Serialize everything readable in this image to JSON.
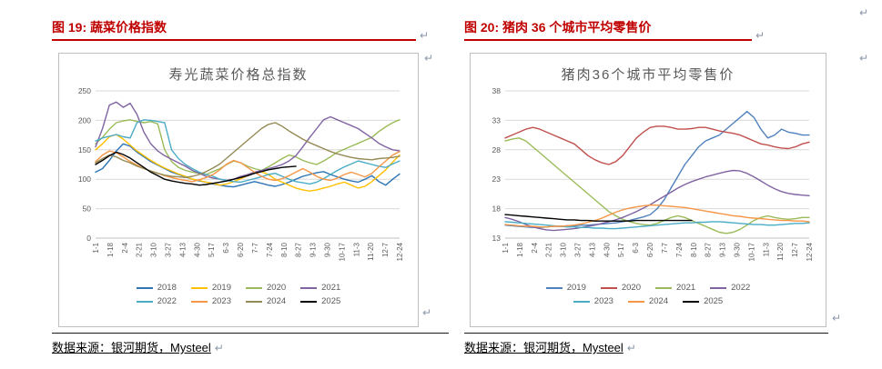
{
  "page": {
    "formatting_mark": "↵"
  },
  "figures": {
    "left": {
      "heading": "图 19: 蔬菜价格指数",
      "source": "数据来源：银河期货，Mysteel"
    },
    "right": {
      "heading": "图 20: 猪肉 36 个城市平均零售价",
      "source": "数据来源：银河期货，Mysteel"
    }
  },
  "colors": {
    "heading_red": "#C00000",
    "axis_text": "#595959",
    "gridline": "#D9D9D9",
    "axis_line": "#BFBFBF",
    "chart_border": "#BFBFBF"
  },
  "chart_data": [
    {
      "type": "line",
      "title": "寿光蔬菜价格总指数",
      "xlabel": "",
      "ylabel": "",
      "ylim": [
        0,
        250
      ],
      "yticks": [
        0,
        50,
        100,
        150,
        200,
        250
      ],
      "grid": true,
      "legend_position": "bottom",
      "categories": [
        "1-1",
        "1-18",
        "2-4",
        "2-21",
        "3-10",
        "3-27",
        "4-13",
        "4-30",
        "5-17",
        "6-3",
        "6-20",
        "7-7",
        "7-24",
        "8-10",
        "8-27",
        "9-13",
        "9-30",
        "10-17",
        "11-3",
        "11-20",
        "12-7",
        "12-24"
      ],
      "legend_rows": [
        [
          "2018",
          "2019",
          "2020",
          "2021"
        ],
        [
          "2022",
          "2023",
          "2024",
          "2025"
        ]
      ],
      "series": [
        {
          "name": "2018",
          "color": "#2E75B6",
          "values": [
            112,
            118,
            132,
            148,
            160,
            156,
            146,
            138,
            130,
            124,
            118,
            112,
            108,
            104,
            100,
            97,
            95,
            92,
            90,
            88,
            87,
            90,
            93,
            96,
            93,
            90,
            88,
            91,
            95,
            100,
            105,
            108,
            111,
            113,
            108,
            104,
            100,
            97,
            95,
            100,
            106,
            96,
            90,
            100,
            109
          ]
        },
        {
          "name": "2019",
          "color": "#FFC000",
          "values": [
            150,
            160,
            172,
            176,
            168,
            158,
            148,
            140,
            132,
            125,
            119,
            114,
            109,
            105,
            100,
            98,
            95,
            93,
            90,
            92,
            96,
            101,
            106,
            111,
            113,
            108,
            100,
            95,
            90,
            85,
            82,
            80,
            82,
            85,
            88,
            92,
            95,
            90,
            85,
            88,
            96,
            106,
            116,
            129,
            141
          ]
        },
        {
          "name": "2020",
          "color": "#9BBB59",
          "values": [
            160,
            171,
            185,
            196,
            199,
            201,
            198,
            196,
            198,
            194,
            150,
            130,
            120,
            115,
            112,
            110,
            108,
            113,
            118,
            125,
            131,
            128,
            122,
            118,
            115,
            121,
            128,
            135,
            141,
            138,
            132,
            128,
            125,
            131,
            138,
            146,
            151,
            156,
            161,
            166,
            171,
            181,
            189,
            196,
            201
          ]
        },
        {
          "name": "2021",
          "color": "#8064A2",
          "values": [
            155,
            186,
            226,
            231,
            222,
            229,
            210,
            180,
            160,
            148,
            140,
            134,
            128,
            122,
            115,
            110,
            105,
            102,
            100,
            98,
            100,
            105,
            108,
            112,
            115,
            118,
            121,
            125,
            131,
            140,
            155,
            171,
            186,
            201,
            206,
            201,
            196,
            191,
            186,
            178,
            170,
            161,
            155,
            150,
            148
          ]
        },
        {
          "name": "2022",
          "color": "#4BACC6",
          "values": [
            165,
            170,
            173,
            176,
            172,
            170,
            196,
            201,
            200,
            198,
            196,
            150,
            135,
            125,
            118,
            112,
            108,
            105,
            100,
            98,
            96,
            95,
            98,
            101,
            104,
            108,
            110,
            105,
            100,
            96,
            94,
            92,
            95,
            101,
            108,
            115,
            121,
            126,
            131,
            128,
            125,
            122,
            120,
            126,
            131
          ]
        },
        {
          "name": "2023",
          "color": "#F79646",
          "values": [
            130,
            141,
            148,
            145,
            138,
            130,
            124,
            118,
            114,
            110,
            106,
            103,
            100,
            98,
            96,
            99,
            103,
            108,
            116,
            126,
            132,
            128,
            120,
            112,
            105,
            100,
            98,
            101,
            106,
            112,
            118,
            112,
            105,
            100,
            98,
            102,
            108,
            112,
            108,
            104,
            110,
            121,
            131,
            141,
            147
          ]
        },
        {
          "name": "2024",
          "color": "#948A54",
          "values": [
            128,
            135,
            141,
            138,
            132,
            128,
            122,
            118,
            114,
            110,
            107,
            105,
            104,
            103,
            105,
            108,
            113,
            119,
            126,
            136,
            146,
            156,
            166,
            176,
            186,
            193,
            196,
            190,
            182,
            175,
            168,
            162,
            157,
            152,
            147,
            143,
            140,
            137,
            135,
            134,
            133,
            135,
            136,
            137,
            139
          ]
        },
        {
          "name": "2025",
          "color": "#000000",
          "values": [
            125,
            132,
            140,
            146,
            142,
            136,
            128,
            120,
            112,
            106,
            100,
            97,
            95,
            93,
            92,
            90,
            91,
            93,
            95,
            97,
            100,
            103,
            106,
            110,
            113,
            116,
            118,
            120,
            121,
            122
          ]
        }
      ]
    },
    {
      "type": "line",
      "title": "猪肉36个城市平均零售价",
      "xlabel": "",
      "ylabel": "",
      "ylim": [
        13,
        38
      ],
      "yticks": [
        13,
        18,
        23,
        28,
        33,
        38
      ],
      "grid": true,
      "legend_position": "bottom",
      "categories": [
        "1-1",
        "1-18",
        "2-4",
        "2-21",
        "3-10",
        "3-27",
        "4-13",
        "4-30",
        "5-17",
        "6-3",
        "6-20",
        "7-7",
        "7-24",
        "8-10",
        "8-27",
        "9-13",
        "9-30",
        "10-17",
        "11-3",
        "11-20",
        "12-7",
        "12-24"
      ],
      "legend_rows": [
        [
          "2019",
          "2020",
          "2021",
          "2022"
        ],
        [
          "2023",
          "2024",
          "2025"
        ]
      ],
      "series": [
        {
          "name": "2019",
          "color": "#4F81BD",
          "values": [
            15.2,
            15.1,
            15.0,
            14.9,
            14.8,
            14.8,
            14.9,
            15.0,
            15.0,
            15.1,
            15.1,
            15.2,
            15.2,
            15.3,
            15.4,
            15.5,
            15.6,
            15.8,
            16.0,
            16.3,
            16.6,
            17.0,
            18.0,
            19.5,
            21.5,
            23.5,
            25.5,
            27.0,
            28.5,
            29.5,
            30.0,
            30.5,
            31.5,
            32.5,
            33.5,
            34.5,
            33.5,
            31.5,
            30.0,
            30.5,
            31.5,
            31.0,
            30.8,
            30.5,
            30.5
          ]
        },
        {
          "name": "2020",
          "color": "#C0504D",
          "values": [
            30.0,
            30.5,
            31.0,
            31.5,
            31.8,
            31.5,
            31.0,
            30.5,
            30.0,
            29.5,
            29.0,
            28.0,
            27.0,
            26.3,
            25.8,
            25.5,
            26.0,
            27.0,
            28.5,
            30.0,
            31.0,
            31.8,
            32.0,
            32.0,
            31.8,
            31.5,
            31.5,
            31.6,
            31.8,
            31.8,
            31.5,
            31.2,
            31.0,
            30.8,
            30.5,
            30.0,
            29.5,
            29.0,
            28.8,
            28.5,
            28.3,
            28.2,
            28.5,
            29.0,
            29.3
          ]
        },
        {
          "name": "2021",
          "color": "#9BBB59",
          "values": [
            29.5,
            29.8,
            30.0,
            29.5,
            28.5,
            27.5,
            26.5,
            25.5,
            24.5,
            23.5,
            22.5,
            21.5,
            20.5,
            19.5,
            18.5,
            17.5,
            16.8,
            16.2,
            15.8,
            15.5,
            15.3,
            15.2,
            15.5,
            16.0,
            16.5,
            16.8,
            16.5,
            16.0,
            15.5,
            15.0,
            14.5,
            14.0,
            13.8,
            14.0,
            14.5,
            15.2,
            16.0,
            16.5,
            16.8,
            16.5,
            16.3,
            16.2,
            16.3,
            16.5,
            16.5
          ]
        },
        {
          "name": "2022",
          "color": "#8064A2",
          "values": [
            16.5,
            16.2,
            15.8,
            15.3,
            14.9,
            14.6,
            14.4,
            14.3,
            14.4,
            14.5,
            14.6,
            14.8,
            15.0,
            15.2,
            15.5,
            15.8,
            16.1,
            16.5,
            17.0,
            17.5,
            18.1,
            18.7,
            19.4,
            20.1,
            20.8,
            21.5,
            22.1,
            22.6,
            23.0,
            23.4,
            23.7,
            24.0,
            24.3,
            24.5,
            24.4,
            24.0,
            23.4,
            22.7,
            22.0,
            21.4,
            20.9,
            20.6,
            20.4,
            20.3,
            20.2
          ]
        },
        {
          "name": "2023",
          "color": "#4BACC6",
          "values": [
            15.8,
            15.7,
            15.6,
            15.5,
            15.4,
            15.3,
            15.2,
            15.1,
            15.0,
            14.9,
            14.9,
            14.8,
            14.8,
            14.7,
            14.7,
            14.6,
            14.6,
            14.7,
            14.8,
            14.9,
            15.0,
            15.1,
            15.2,
            15.3,
            15.4,
            15.5,
            15.6,
            15.6,
            15.7,
            15.7,
            15.8,
            15.8,
            15.7,
            15.6,
            15.5,
            15.4,
            15.3,
            15.3,
            15.2,
            15.2,
            15.3,
            15.4,
            15.5,
            15.5,
            15.6
          ]
        },
        {
          "name": "2024",
          "color": "#F79646",
          "values": [
            15.3,
            15.2,
            15.1,
            15.0,
            15.0,
            14.9,
            14.9,
            15.0,
            15.0,
            15.1,
            15.2,
            15.4,
            15.7,
            16.0,
            16.4,
            16.9,
            17.4,
            17.8,
            18.1,
            18.3,
            18.5,
            18.6,
            18.6,
            18.5,
            18.4,
            18.3,
            18.2,
            18.0,
            17.8,
            17.6,
            17.4,
            17.2,
            17.0,
            16.8,
            16.7,
            16.5,
            16.4,
            16.3,
            16.2,
            16.1,
            16.0,
            16.0,
            15.9,
            15.9,
            15.8
          ]
        },
        {
          "name": "2025",
          "color": "#000000",
          "values": [
            17.0,
            16.9,
            16.8,
            16.7,
            16.6,
            16.5,
            16.4,
            16.3,
            16.2,
            16.1,
            16.1,
            16.0,
            16.0,
            15.9,
            15.9,
            15.9,
            15.9,
            15.9,
            15.9,
            16.0,
            16.0,
            16.0,
            16.0,
            16.0,
            16.0,
            16.0,
            16.0,
            16.0
          ]
        }
      ]
    }
  ]
}
